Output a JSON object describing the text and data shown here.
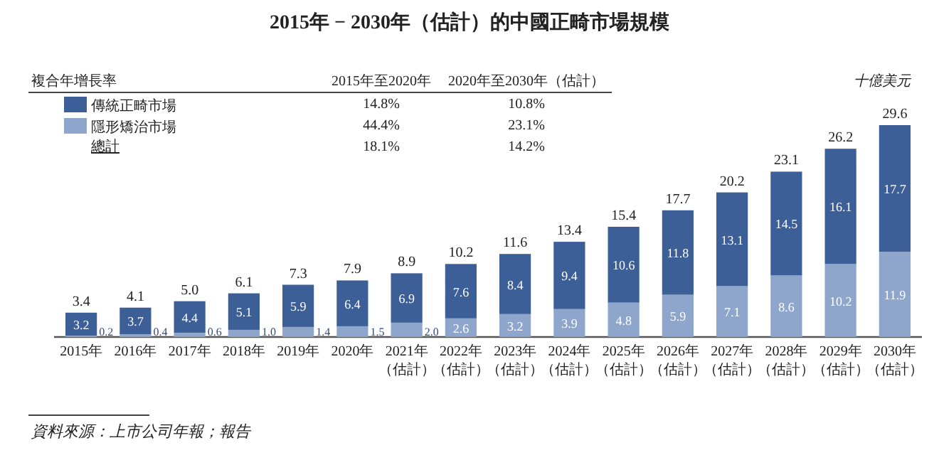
{
  "chart_data": {
    "type": "bar",
    "title": "2015年 − 2030年（估計）的中國正畸市場規模",
    "stacked": true,
    "legend": "top left",
    "categories": [
      "2015年",
      "2016年",
      "2017年",
      "2018年",
      "2019年",
      "2020年",
      "2021年（估計）",
      "2022年（估計）",
      "2023年（估計）",
      "2024年（估計）",
      "2025年（估計）",
      "2026年（估計）",
      "2027年（估計）",
      "2028年（估計）",
      "2029年（估計）",
      "2030年（估計）"
    ],
    "series": [
      {
        "name": "隱形矯治市場",
        "color": "#8ea6cc",
        "values": [
          0.2,
          0.4,
          0.6,
          1.0,
          1.4,
          1.5,
          2.0,
          2.6,
          3.2,
          3.9,
          4.8,
          5.9,
          7.1,
          8.6,
          10.2,
          11.9
        ],
        "value_labels": [
          "0.2",
          "0.4",
          "0.6",
          "1.0",
          "1.4",
          "1.5",
          "2.0",
          "2.6",
          "3.2",
          "3.9",
          "4.8",
          "5.9",
          "7.1",
          "8.6",
          "10.2",
          "11.9"
        ]
      },
      {
        "name": "傳統正畸市場",
        "color": "#3d5f97",
        "values": [
          3.2,
          3.7,
          4.4,
          5.1,
          5.9,
          6.4,
          6.9,
          7.6,
          8.4,
          9.4,
          10.6,
          11.8,
          13.1,
          14.5,
          16.1,
          17.7
        ],
        "value_labels": [
          "3.2",
          "3.7",
          "4.4",
          "5.1",
          "5.9",
          "6.4",
          "6.9",
          "7.6",
          "8.4",
          "9.4",
          "10.6",
          "11.8",
          "13.1",
          "14.5",
          "16.1",
          "17.7"
        ]
      }
    ],
    "totals": [
      "3.4",
      "4.1",
      "5.0",
      "6.1",
      "7.3",
      "7.9",
      "8.9",
      "10.2",
      "11.6",
      "13.4",
      "15.4",
      "17.7",
      "20.2",
      "23.1",
      "26.2",
      "29.6"
    ],
    "annotations": [
      "複合年增長率",
      "2015年至2020年",
      "2020年至2030年（估計）",
      "14.8%",
      "10.8%",
      "44.4%",
      "23.1%",
      "總計",
      "18.1%",
      "14.2%",
      "十億美元",
      "資料來源：上市公司年報；報告"
    ]
  }
}
